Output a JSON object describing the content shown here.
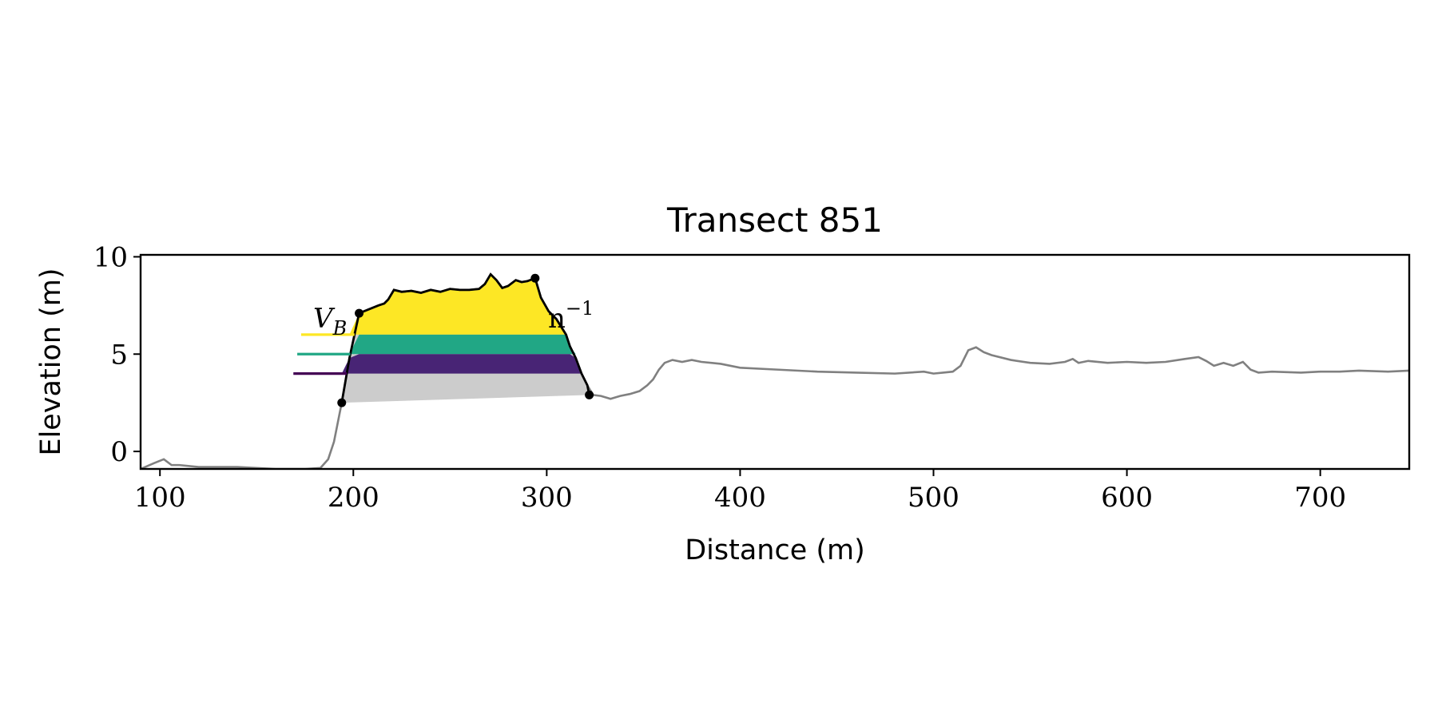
{
  "chart_data": {
    "type": "area",
    "title": "Transect 851",
    "xlabel": "Distance (m)",
    "ylabel": "Elevation (m)",
    "xlim": [
      90,
      746
    ],
    "ylim": [
      -0.9,
      10.1
    ],
    "xticks": [
      100,
      200,
      300,
      400,
      500,
      600,
      700
    ],
    "yticks": [
      0,
      5,
      10
    ],
    "grid": false,
    "legend": "none",
    "profile": {
      "x": [
        90,
        97,
        102,
        106,
        110,
        120,
        140,
        160,
        175,
        183,
        187,
        190,
        194,
        198,
        203,
        208,
        213,
        216,
        218,
        221,
        225,
        230,
        235,
        240,
        245,
        250,
        255,
        260,
        265,
        268,
        271,
        274,
        277,
        280,
        284,
        287,
        290,
        294,
        297,
        301,
        305,
        310,
        312,
        315,
        318,
        321,
        324,
        328,
        333,
        338,
        343,
        348,
        352,
        355,
        358,
        361,
        365,
        370,
        375,
        380,
        390,
        400,
        420,
        440,
        460,
        480,
        495,
        500,
        505,
        510,
        514,
        518,
        522,
        526,
        530,
        540,
        550,
        560,
        568,
        572,
        575,
        580,
        590,
        600,
        610,
        620,
        630,
        637,
        641,
        645,
        650,
        655,
        660,
        664,
        668,
        675,
        690,
        700,
        710,
        720,
        735,
        746
      ],
      "y": [
        -0.9,
        -0.6,
        -0.4,
        -0.7,
        -0.7,
        -0.8,
        -0.8,
        -0.9,
        -0.9,
        -0.85,
        -0.4,
        0.5,
        2.5,
        4.8,
        7.1,
        7.3,
        7.5,
        7.6,
        7.8,
        8.3,
        8.2,
        8.25,
        8.15,
        8.3,
        8.2,
        8.35,
        8.3,
        8.3,
        8.35,
        8.6,
        9.1,
        8.8,
        8.4,
        8.5,
        8.8,
        8.7,
        8.75,
        8.9,
        7.9,
        7.2,
        6.8,
        6.0,
        5.4,
        4.8,
        4.0,
        3.4,
        2.9,
        2.85,
        2.7,
        2.85,
        2.95,
        3.1,
        3.4,
        3.7,
        4.2,
        4.55,
        4.7,
        4.6,
        4.7,
        4.6,
        4.5,
        4.3,
        4.2,
        4.1,
        4.05,
        4.0,
        4.1,
        4.0,
        4.05,
        4.1,
        4.4,
        5.2,
        5.35,
        5.1,
        4.95,
        4.7,
        4.55,
        4.5,
        4.6,
        4.75,
        4.55,
        4.65,
        4.55,
        4.6,
        4.55,
        4.6,
        4.75,
        4.85,
        4.65,
        4.4,
        4.55,
        4.4,
        4.6,
        4.2,
        4.05,
        4.1,
        4.05,
        4.1,
        4.1,
        4.15,
        4.1,
        4.15
      ]
    },
    "dune": {
      "toe": [
        194,
        2.5
      ],
      "crest": [
        294,
        8.9
      ],
      "heel": [
        322,
        2.9
      ],
      "vertex": [
        203,
        7.1
      ]
    },
    "bands": [
      {
        "from": 6.0,
        "to": 9.2,
        "color": "#fde725"
      },
      {
        "from": 5.0,
        "to": 6.0,
        "color": "#21a785"
      },
      {
        "from": 4.0,
        "to": 5.0,
        "color": "#482475"
      }
    ],
    "reference_lines": [
      {
        "y": 6.0,
        "x_start": 173,
        "color": "#fde725"
      },
      {
        "y": 5.0,
        "x_start": 171,
        "color": "#21a785"
      },
      {
        "y": 4.0,
        "x_start": 169,
        "color": "#440154"
      }
    ],
    "base_fill_color": "#cccccc",
    "profile_color": "#808080",
    "dune_outline_color": "#000000",
    "annotations": {
      "volume_label_left": "V",
      "volume_label_sub": "B",
      "volume_label_right": "n",
      "volume_label_sup": "−1"
    }
  }
}
